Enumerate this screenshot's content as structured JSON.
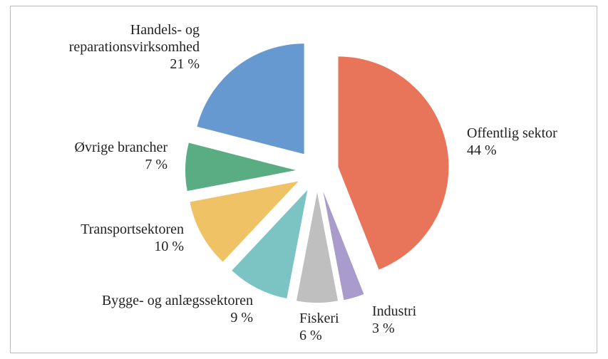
{
  "chart_data": {
    "type": "pie",
    "categories": [
      "Offentlig sektor",
      "Industri",
      "Fiskeri",
      "Bygge- og anlægssektoren",
      "Transportsektoren",
      "Øvrige brancher",
      "Handels- og reparationsvirksomhed"
    ],
    "values": [
      44,
      3,
      6,
      9,
      10,
      7,
      21
    ],
    "value_labels": [
      "44 %",
      "3 %",
      "6 %",
      "9 %",
      "10 %",
      "7 %",
      "21 %"
    ],
    "colors": [
      "#e8755a",
      "#a99bcc",
      "#bfbfbf",
      "#7cc3c4",
      "#efc266",
      "#5aad82",
      "#6699d0"
    ]
  }
}
